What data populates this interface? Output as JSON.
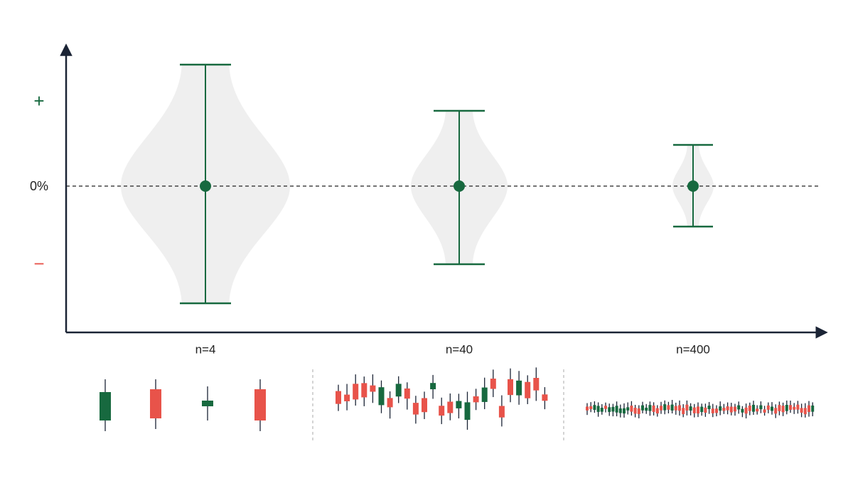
{
  "y_axis": {
    "plus": "+",
    "zero": "0%",
    "minus": "−"
  },
  "groups": [
    {
      "label": "n=4"
    },
    {
      "label": "n=40"
    },
    {
      "label": "n=400"
    }
  ]
}
